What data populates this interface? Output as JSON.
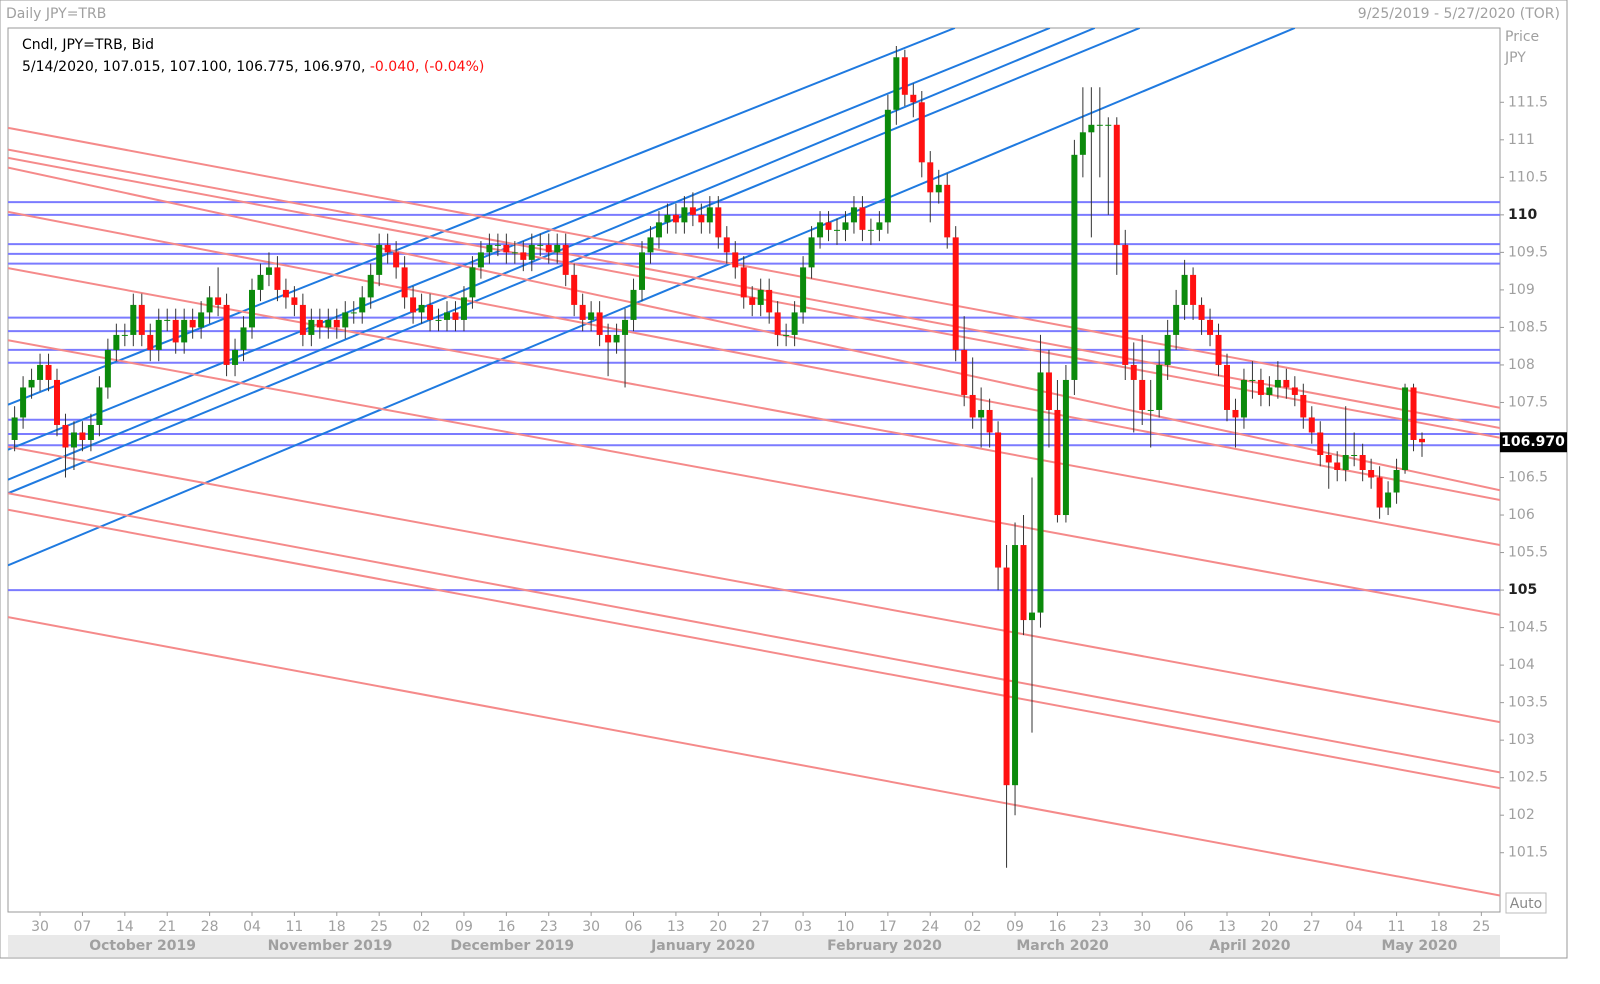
{
  "header": {
    "title": "Daily JPY=TRB",
    "range": "9/25/2019 - 5/27/2020 (TOR)"
  },
  "info": {
    "line1": "Cndl, JPY=TRB, Bid",
    "line2": "5/14/2020, 107.015, 107.100, 106.775, 106.970,",
    "change": "-0.040, (-0.04%)"
  },
  "axis_title": [
    "Price",
    "JPY"
  ],
  "auto_button": "Auto",
  "chart_data": {
    "type": "candlestick",
    "up_color": "#0b8a0b",
    "down_color": "#ff1010",
    "xlim": [
      -0.78,
      175.2
    ],
    "ylim": [
      100.71,
      112.49
    ],
    "yticks": [
      101.5,
      102,
      102.5,
      103,
      103.5,
      104,
      104.5,
      105,
      105.5,
      106,
      106.5,
      107,
      107.5,
      108,
      108.5,
      109,
      109.5,
      110,
      110.5,
      111,
      111.5
    ],
    "xticks": [
      {
        "value": 3,
        "label": "30"
      },
      {
        "value": 8,
        "label": "07"
      },
      {
        "value": 13,
        "label": "14"
      },
      {
        "value": 18,
        "label": "21"
      },
      {
        "value": 23,
        "label": "28"
      },
      {
        "value": 28,
        "label": "04"
      },
      {
        "value": 33,
        "label": "11"
      },
      {
        "value": 38,
        "label": "18"
      },
      {
        "value": 43,
        "label": "25"
      },
      {
        "value": 48,
        "label": "02"
      },
      {
        "value": 53,
        "label": "09"
      },
      {
        "value": 58,
        "label": "16"
      },
      {
        "value": 63,
        "label": "23"
      },
      {
        "value": 68,
        "label": "30"
      },
      {
        "value": 73,
        "label": "06"
      },
      {
        "value": 78,
        "label": "13"
      },
      {
        "value": 83,
        "label": "20"
      },
      {
        "value": 88,
        "label": "27"
      },
      {
        "value": 93,
        "label": "03"
      },
      {
        "value": 98,
        "label": "10"
      },
      {
        "value": 103,
        "label": "17"
      },
      {
        "value": 108,
        "label": "24"
      },
      {
        "value": 113,
        "label": "02"
      },
      {
        "value": 118,
        "label": "09"
      },
      {
        "value": 123,
        "label": "16"
      },
      {
        "value": 128,
        "label": "23"
      },
      {
        "value": 133,
        "label": "30"
      },
      {
        "value": 138,
        "label": "06"
      },
      {
        "value": 143,
        "label": "13"
      },
      {
        "value": 148,
        "label": "20"
      },
      {
        "value": 153,
        "label": "27"
      },
      {
        "value": 158,
        "label": "04"
      },
      {
        "value": 163,
        "label": "11"
      },
      {
        "value": 168,
        "label": "18"
      },
      {
        "value": 173,
        "label": "25"
      }
    ],
    "months": [
      {
        "value": 15.1,
        "label": "October 2019"
      },
      {
        "value": 37.2,
        "label": "November 2019"
      },
      {
        "value": 58.7,
        "label": "December 2019"
      },
      {
        "value": 81.2,
        "label": "January 2020"
      },
      {
        "value": 102.6,
        "label": "February 2020"
      },
      {
        "value": 123.6,
        "label": "March 2020"
      },
      {
        "value": 145.7,
        "label": "April 2020"
      },
      {
        "value": 165.7,
        "label": "May 2020"
      }
    ],
    "last_price": {
      "value": 106.97,
      "label": "106.970"
    },
    "hlines": {
      "color": "#7b7bff",
      "values": [
        110.17,
        110.0,
        109.61,
        109.48,
        109.35,
        108.63,
        108.45,
        108.2,
        108.03,
        107.27,
        107.08,
        106.93,
        105.0
      ]
    },
    "trendlines": [
      {
        "color": "#1f7ae0",
        "lines": [
          [
            -0.78,
            107.47,
            110.9,
            112.49
          ],
          [
            -0.78,
            106.87,
            122.1,
            112.49
          ],
          [
            -0.78,
            106.47,
            127.4,
            112.49
          ],
          [
            -0.78,
            106.29,
            132.7,
            112.49
          ],
          [
            -0.78,
            105.33,
            151.0,
            112.49
          ]
        ]
      },
      {
        "color": "#f58a8a",
        "lines": [
          [
            -0.78,
            111.16,
            175.2,
            107.43
          ],
          [
            -0.78,
            110.87,
            175.2,
            107.16
          ],
          [
            -0.78,
            110.76,
            175.2,
            107.03
          ],
          [
            -0.78,
            110.63,
            175.2,
            106.33
          ],
          [
            -0.78,
            110.04,
            175.2,
            106.2
          ],
          [
            -0.78,
            109.29,
            175.2,
            105.6
          ],
          [
            -0.78,
            108.33,
            175.2,
            104.67
          ],
          [
            -0.78,
            106.91,
            175.2,
            103.24
          ],
          [
            -0.78,
            106.29,
            175.2,
            102.57
          ],
          [
            -0.78,
            106.07,
            175.2,
            102.36
          ],
          [
            -0.78,
            104.64,
            175.2,
            100.93
          ]
        ]
      }
    ],
    "ohlc": [
      [
        107.0,
        107.45,
        106.85,
        107.3
      ],
      [
        107.3,
        107.85,
        107.15,
        107.7
      ],
      [
        107.7,
        107.95,
        107.55,
        107.8
      ],
      [
        107.8,
        108.15,
        107.65,
        108.0
      ],
      [
        108.0,
        108.15,
        107.65,
        107.8
      ],
      [
        107.8,
        107.95,
        107.05,
        107.2
      ],
      [
        107.2,
        107.35,
        106.5,
        106.9
      ],
      [
        106.9,
        107.25,
        106.6,
        107.1
      ],
      [
        107.1,
        107.25,
        106.85,
        107.0
      ],
      [
        107.0,
        107.35,
        106.85,
        107.2
      ],
      [
        107.2,
        107.85,
        107.05,
        107.7
      ],
      [
        107.7,
        108.35,
        107.55,
        108.2
      ],
      [
        108.2,
        108.55,
        108.05,
        108.4
      ],
      [
        108.4,
        108.55,
        108.25,
        108.4
      ],
      [
        108.4,
        108.95,
        108.25,
        108.8
      ],
      [
        108.8,
        108.95,
        108.25,
        108.4
      ],
      [
        108.4,
        108.55,
        108.05,
        108.2
      ],
      [
        108.2,
        108.75,
        108.05,
        108.6
      ],
      [
        108.6,
        108.75,
        108.45,
        108.6
      ],
      [
        108.6,
        108.75,
        108.15,
        108.3
      ],
      [
        108.3,
        108.75,
        108.15,
        108.6
      ],
      [
        108.6,
        108.75,
        108.35,
        108.5
      ],
      [
        108.5,
        108.85,
        108.35,
        108.7
      ],
      [
        108.7,
        109.05,
        108.55,
        108.9
      ],
      [
        108.9,
        109.3,
        108.65,
        108.8
      ],
      [
        108.8,
        108.95,
        107.85,
        108.0
      ],
      [
        108.0,
        108.35,
        107.85,
        108.2
      ],
      [
        108.2,
        108.65,
        108.05,
        108.5
      ],
      [
        108.5,
        109.15,
        108.35,
        109.0
      ],
      [
        109.0,
        109.35,
        108.85,
        109.2
      ],
      [
        109.2,
        109.5,
        109.05,
        109.3
      ],
      [
        109.3,
        109.45,
        108.85,
        109.0
      ],
      [
        109.0,
        109.15,
        108.75,
        108.9
      ],
      [
        108.9,
        109.05,
        108.65,
        108.8
      ],
      [
        108.8,
        108.95,
        108.25,
        108.4
      ],
      [
        108.4,
        108.75,
        108.25,
        108.6
      ],
      [
        108.6,
        108.75,
        108.35,
        108.5
      ],
      [
        108.5,
        108.75,
        108.35,
        108.6
      ],
      [
        108.6,
        108.75,
        108.35,
        108.5
      ],
      [
        108.5,
        108.85,
        108.35,
        108.7
      ],
      [
        108.7,
        108.85,
        108.55,
        108.7
      ],
      [
        108.7,
        109.05,
        108.55,
        108.9
      ],
      [
        108.9,
        109.35,
        108.75,
        109.2
      ],
      [
        109.2,
        109.75,
        109.05,
        109.6
      ],
      [
        109.6,
        109.75,
        109.35,
        109.5
      ],
      [
        109.5,
        109.65,
        109.15,
        109.3
      ],
      [
        109.3,
        109.45,
        108.75,
        108.9
      ],
      [
        108.9,
        109.05,
        108.55,
        108.7
      ],
      [
        108.7,
        108.95,
        108.55,
        108.8
      ],
      [
        108.8,
        108.95,
        108.45,
        108.6
      ],
      [
        108.6,
        108.75,
        108.45,
        108.6
      ],
      [
        108.6,
        108.85,
        108.45,
        108.7
      ],
      [
        108.7,
        108.85,
        108.45,
        108.6
      ],
      [
        108.6,
        109.05,
        108.45,
        108.9
      ],
      [
        108.9,
        109.45,
        108.75,
        109.3
      ],
      [
        109.3,
        109.65,
        109.15,
        109.5
      ],
      [
        109.5,
        109.75,
        109.35,
        109.6
      ],
      [
        109.6,
        109.75,
        109.45,
        109.6
      ],
      [
        109.6,
        109.75,
        109.35,
        109.5
      ],
      [
        109.5,
        109.65,
        109.35,
        109.5
      ],
      [
        109.5,
        109.65,
        109.25,
        109.4
      ],
      [
        109.4,
        109.75,
        109.25,
        109.6
      ],
      [
        109.6,
        109.75,
        109.45,
        109.6
      ],
      [
        109.6,
        109.75,
        109.35,
        109.5
      ],
      [
        109.5,
        109.75,
        109.35,
        109.6
      ],
      [
        109.6,
        109.75,
        109.05,
        109.2
      ],
      [
        109.2,
        109.35,
        108.65,
        108.8
      ],
      [
        108.8,
        108.95,
        108.45,
        108.6
      ],
      [
        108.6,
        108.85,
        108.45,
        108.7
      ],
      [
        108.7,
        108.85,
        108.25,
        108.4
      ],
      [
        108.4,
        108.55,
        107.85,
        108.3
      ],
      [
        108.3,
        108.55,
        108.15,
        108.4
      ],
      [
        108.4,
        108.75,
        107.7,
        108.6
      ],
      [
        108.6,
        109.15,
        108.45,
        109.0
      ],
      [
        109.0,
        109.65,
        108.85,
        109.5
      ],
      [
        109.5,
        109.85,
        109.35,
        109.7
      ],
      [
        109.7,
        110.05,
        109.55,
        109.9
      ],
      [
        109.9,
        110.15,
        109.75,
        110.0
      ],
      [
        110.0,
        110.15,
        109.75,
        109.9
      ],
      [
        109.9,
        110.25,
        109.75,
        110.1
      ],
      [
        110.1,
        110.3,
        109.85,
        110.0
      ],
      [
        110.0,
        110.15,
        109.75,
        109.9
      ],
      [
        109.9,
        110.25,
        109.75,
        110.1
      ],
      [
        110.1,
        110.25,
        109.55,
        109.7
      ],
      [
        109.7,
        109.85,
        109.35,
        109.5
      ],
      [
        109.5,
        109.65,
        109.15,
        109.3
      ],
      [
        109.3,
        109.45,
        108.75,
        108.9
      ],
      [
        108.9,
        109.05,
        108.65,
        108.8
      ],
      [
        108.8,
        109.15,
        108.65,
        109.0
      ],
      [
        109.0,
        109.15,
        108.55,
        108.7
      ],
      [
        108.7,
        108.85,
        108.25,
        108.4
      ],
      [
        108.4,
        108.55,
        108.25,
        108.4
      ],
      [
        108.4,
        108.85,
        108.25,
        108.7
      ],
      [
        108.7,
        109.45,
        108.55,
        109.3
      ],
      [
        109.3,
        109.85,
        109.15,
        109.7
      ],
      [
        109.7,
        110.05,
        109.55,
        109.9
      ],
      [
        109.9,
        110.05,
        109.65,
        109.8
      ],
      [
        109.8,
        109.95,
        109.6,
        109.8
      ],
      [
        109.8,
        110.05,
        109.65,
        109.9
      ],
      [
        109.9,
        110.25,
        109.75,
        110.1
      ],
      [
        110.1,
        110.25,
        109.65,
        109.8
      ],
      [
        109.8,
        109.95,
        109.6,
        109.8
      ],
      [
        109.8,
        110.05,
        109.65,
        109.9
      ],
      [
        109.9,
        111.6,
        109.75,
        111.4
      ],
      [
        111.4,
        112.25,
        111.2,
        112.1
      ],
      [
        112.1,
        112.2,
        111.45,
        111.6
      ],
      [
        111.6,
        111.75,
        111.3,
        111.5
      ],
      [
        111.5,
        111.65,
        110.5,
        110.7
      ],
      [
        110.7,
        110.85,
        109.9,
        110.3
      ],
      [
        110.3,
        110.6,
        110.15,
        110.4
      ],
      [
        110.4,
        110.55,
        109.55,
        109.7
      ],
      [
        109.7,
        109.85,
        108.05,
        108.2
      ],
      [
        108.2,
        108.65,
        107.45,
        107.6
      ],
      [
        107.6,
        108.1,
        107.15,
        107.3
      ],
      [
        107.3,
        107.7,
        106.9,
        107.4
      ],
      [
        107.4,
        107.55,
        106.9,
        107.1
      ],
      [
        107.1,
        107.25,
        105.0,
        105.3
      ],
      [
        105.3,
        105.6,
        101.3,
        102.4
      ],
      [
        102.4,
        105.9,
        102.0,
        105.6
      ],
      [
        105.6,
        106.0,
        104.4,
        104.6
      ],
      [
        104.6,
        106.5,
        103.1,
        104.7
      ],
      [
        104.7,
        108.4,
        104.5,
        107.9
      ],
      [
        107.9,
        108.2,
        106.9,
        107.4
      ],
      [
        107.4,
        107.8,
        105.9,
        106.0
      ],
      [
        106.0,
        108.0,
        105.9,
        107.8
      ],
      [
        107.8,
        111.0,
        107.6,
        110.8
      ],
      [
        110.8,
        111.7,
        110.5,
        111.1
      ],
      [
        111.1,
        111.7,
        109.7,
        111.2
      ],
      [
        111.2,
        111.7,
        110.5,
        111.2
      ],
      [
        111.2,
        111.3,
        110.0,
        111.2
      ],
      [
        111.2,
        111.3,
        109.2,
        109.6
      ],
      [
        109.6,
        109.8,
        107.8,
        108.0
      ],
      [
        108.0,
        108.3,
        107.1,
        107.8
      ],
      [
        107.8,
        108.4,
        107.2,
        107.4
      ],
      [
        107.4,
        107.8,
        106.9,
        107.4
      ],
      [
        107.4,
        108.2,
        107.3,
        108.0
      ],
      [
        108.0,
        108.6,
        107.8,
        108.4
      ],
      [
        108.4,
        109.0,
        108.2,
        108.8
      ],
      [
        108.8,
        109.4,
        108.6,
        109.2
      ],
      [
        109.2,
        109.3,
        108.6,
        108.8
      ],
      [
        108.8,
        108.9,
        108.4,
        108.6
      ],
      [
        108.6,
        108.75,
        108.25,
        108.4
      ],
      [
        108.4,
        108.55,
        107.85,
        108.0
      ],
      [
        108.0,
        108.15,
        107.25,
        107.4
      ],
      [
        107.4,
        107.55,
        106.9,
        107.3
      ],
      [
        107.3,
        107.95,
        107.15,
        107.8
      ],
      [
        107.8,
        108.05,
        107.55,
        107.8
      ],
      [
        107.8,
        107.95,
        107.45,
        107.6
      ],
      [
        107.6,
        107.85,
        107.45,
        107.7
      ],
      [
        107.7,
        108.05,
        107.55,
        107.8
      ],
      [
        107.8,
        107.95,
        107.55,
        107.7
      ],
      [
        107.7,
        107.85,
        107.45,
        107.6
      ],
      [
        107.6,
        107.75,
        107.15,
        107.3
      ],
      [
        107.3,
        107.45,
        106.95,
        107.1
      ],
      [
        107.1,
        107.25,
        106.65,
        106.8
      ],
      [
        106.8,
        106.95,
        106.35,
        106.7
      ],
      [
        106.7,
        106.85,
        106.45,
        106.6
      ],
      [
        106.6,
        107.45,
        106.45,
        106.8
      ],
      [
        106.8,
        107.1,
        106.65,
        106.8
      ],
      [
        106.8,
        106.95,
        106.45,
        106.6
      ],
      [
        106.6,
        106.75,
        106.35,
        106.5
      ],
      [
        106.5,
        106.65,
        105.95,
        106.1
      ],
      [
        106.1,
        106.45,
        106.0,
        106.3
      ],
      [
        106.3,
        106.75,
        106.15,
        106.6
      ],
      [
        106.6,
        107.75,
        106.55,
        107.7
      ],
      [
        107.7,
        107.75,
        106.85,
        107.0
      ],
      [
        107.015,
        107.1,
        106.775,
        106.97
      ]
    ]
  }
}
